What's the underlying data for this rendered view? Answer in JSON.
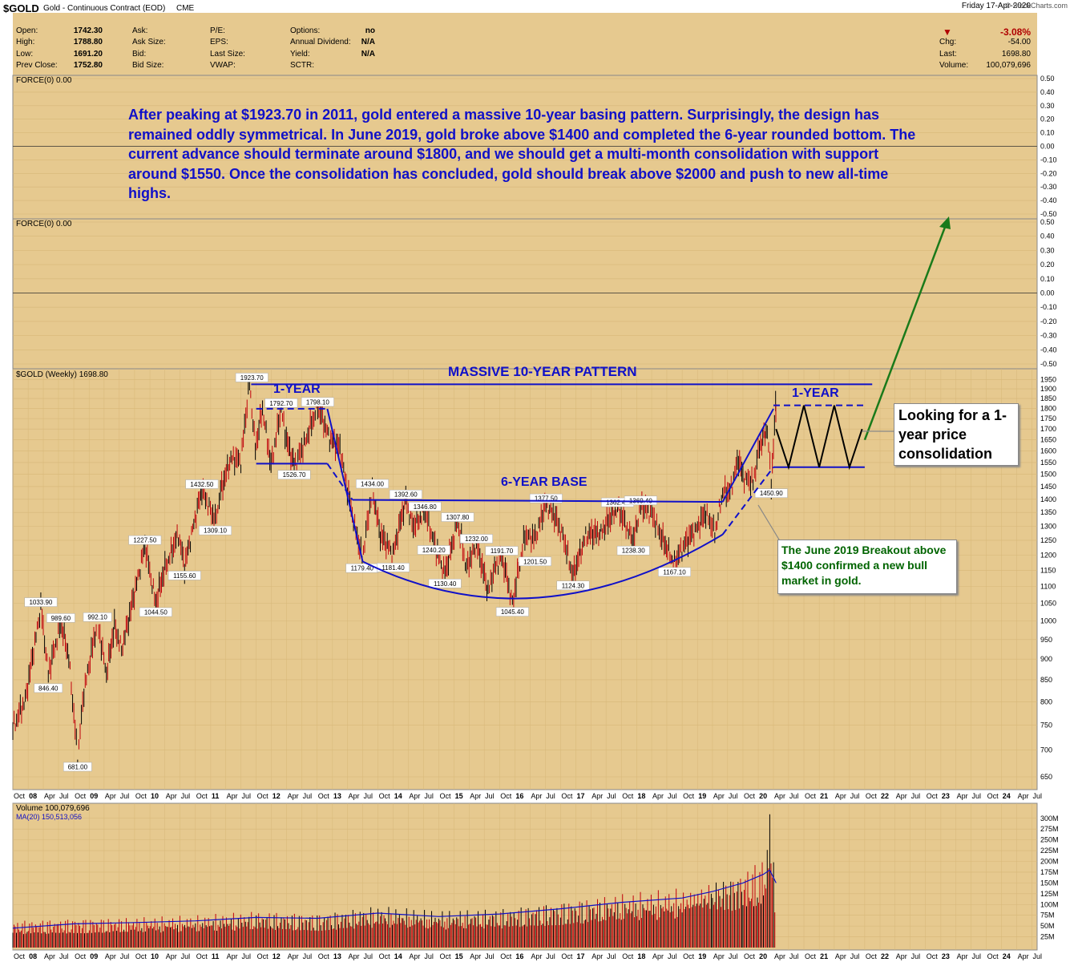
{
  "header": {
    "symbol": "$GOLD",
    "description": "Gold - Continuous Contract (EOD)",
    "exchange": "CME",
    "date": "Friday  17-Apr-2020",
    "watermark": "© StockCharts.com",
    "quotes": [
      {
        "label": "Open:",
        "value": "1742.30"
      },
      {
        "label": "High:",
        "value": "1788.80"
      },
      {
        "label": "Low:",
        "value": "1691.20"
      },
      {
        "label": "Prev Close:",
        "value": "1752.80"
      }
    ],
    "labels_col2": [
      "Ask:",
      "Ask Size:",
      "Bid:",
      "Bid Size:"
    ],
    "labels_col3": [
      "P/E:",
      "EPS:",
      "Last Size:",
      "VWAP:"
    ],
    "labels_col4": [
      {
        "label": "Options:",
        "value": "no"
      },
      {
        "label": "Annual Dividend:",
        "value": "N/A"
      },
      {
        "label": "Yield:",
        "value": "N/A"
      },
      {
        "label": "SCTR:",
        "value": ""
      }
    ],
    "change_pct": "-3.08%",
    "summary": [
      {
        "label": "Chg:",
        "value": "-54.00"
      },
      {
        "label": "Last:",
        "value": "1698.80"
      },
      {
        "label": "Volume:",
        "value": "100,079,696"
      }
    ],
    "colors": {
      "down": "#b00000",
      "up": "#000000",
      "panel": "#e6c98f",
      "blue_text": "#1010c8",
      "green_text": "#006400"
    }
  },
  "chart_data": [
    {
      "type": "line",
      "title": "FORCE(0) 0.00",
      "ylim": [
        -0.5,
        0.5
      ],
      "ytick_labels": [
        "0.50",
        "0.40",
        "0.30",
        "0.20",
        "0.10",
        "0.00",
        "-0.10",
        "-0.20",
        "-0.30",
        "-0.40",
        "-0.50"
      ],
      "series": [
        {
          "name": "FORCE(0)",
          "values": [
            0
          ]
        }
      ]
    },
    {
      "type": "line",
      "title": "FORCE(0) 0.00",
      "ylim": [
        -0.5,
        0.5
      ],
      "ytick_labels": [
        "0.50",
        "0.40",
        "0.30",
        "0.20",
        "0.10",
        "0.00",
        "-0.10",
        "-0.20",
        "-0.30",
        "-0.40",
        "-0.50"
      ],
      "series": [
        {
          "name": "FORCE(0)",
          "values": [
            0
          ]
        }
      ]
    },
    {
      "type": "line",
      "title": "$GOLD (Weekly) 1698.80",
      "y_scale": "log",
      "ylim": [
        640,
        1960
      ],
      "ytick_labels": [
        "1950",
        "1900",
        "1850",
        "1800",
        "1750",
        "1700",
        "1650",
        "1600",
        "1550",
        "1500",
        "1450",
        "1400",
        "1350",
        "1300",
        "1250",
        "1200",
        "1150",
        "1100",
        "1050",
        "1000",
        "950",
        "900",
        "850",
        "800",
        "750",
        "700",
        "650"
      ],
      "xtick_labels": [
        "Oct",
        "08",
        "Apr",
        "Jul",
        "Oct",
        "09",
        "Apr",
        "Jul",
        "Oct",
        "10",
        "Apr",
        "Jul",
        "Oct",
        "11",
        "Apr",
        "Jul",
        "Oct",
        "12",
        "Apr",
        "Jul",
        "Oct",
        "13",
        "Apr",
        "Jul",
        "Oct",
        "14",
        "Apr",
        "Jul",
        "Oct",
        "15",
        "Apr",
        "Jul",
        "Oct",
        "16",
        "Apr",
        "Jul",
        "Oct",
        "17",
        "Apr",
        "Jul",
        "Oct",
        "18",
        "Apr",
        "Jul",
        "Oct",
        "19",
        "Apr",
        "Jul",
        "Oct",
        "20",
        "Apr",
        "Jul",
        "Oct",
        "21",
        "Apr",
        "Jul",
        "Oct",
        "22",
        "Apr",
        "Jul",
        "Oct",
        "23",
        "Apr",
        "Jul",
        "Oct",
        "24",
        "Apr",
        "Jul"
      ],
      "x_start": "2007-10-01",
      "x_end": "2024-08-01",
      "series": [
        {
          "name": "$GOLD (Weekly) 1698.80",
          "x": [
            "2007-10-01",
            "2007-12-15",
            "2008-03-17",
            "2008-05-01",
            "2008-07-15",
            "2008-09-01",
            "2008-10-24",
            "2008-12-01",
            "2009-02-20",
            "2009-04-15",
            "2009-06-02",
            "2009-07-15",
            "2009-09-01",
            "2009-12-02",
            "2010-02-05",
            "2010-04-01",
            "2010-06-21",
            "2010-07-28",
            "2010-09-01",
            "2010-11-09",
            "2011-01-28",
            "2011-03-01",
            "2011-05-02",
            "2011-07-01",
            "2011-08-22",
            "2011-09-26",
            "2011-11-08",
            "2011-12-29",
            "2012-02-28",
            "2012-03-30",
            "2012-05-16",
            "2012-07-15",
            "2012-10-04",
            "2012-12-15",
            "2013-02-15",
            "2013-04-15",
            "2013-06-28",
            "2013-08-28",
            "2013-10-15",
            "2013-12-31",
            "2014-03-17",
            "2014-05-01",
            "2014-07-10",
            "2014-09-01",
            "2014-11-07",
            "2015-01-22",
            "2015-03-17",
            "2015-05-15",
            "2015-07-24",
            "2015-09-01",
            "2015-10-14",
            "2015-12-17",
            "2016-03-01",
            "2016-05-01",
            "2016-07-06",
            "2016-09-01",
            "2016-10-15",
            "2016-12-15",
            "2017-03-01",
            "2017-06-01",
            "2017-09-08",
            "2017-12-12",
            "2018-01-25",
            "2018-04-01",
            "2018-06-01",
            "2018-08-16",
            "2018-10-15",
            "2019-01-01",
            "2019-02-20",
            "2019-04-15",
            "2019-06-01",
            "2019-07-15",
            "2019-09-04",
            "2019-10-01",
            "2019-12-01",
            "2020-01-08",
            "2020-02-24",
            "2020-03-19",
            "2020-04-14",
            "2020-04-17"
          ],
          "values": [
            740,
            800,
            1033.9,
            860,
            989.6,
            900,
            681,
            820,
            992.1,
            860,
            980,
            920,
            1010,
            1227.5,
            1044.5,
            1150,
            1265,
            1155.6,
            1250,
            1432.5,
            1309.1,
            1420,
            1560,
            1550,
            1923.7,
            1600,
            1790,
            1526.7,
            1792.7,
            1640,
            1530,
            1620,
            1798.1,
            1650,
            1600,
            1380,
            1179.4,
            1430,
            1260,
            1200,
            1392.6,
            1290,
            1346.8,
            1240.2,
            1130.4,
            1307.8,
            1150,
            1232,
            1080,
            1150,
            1191.7,
            1045.4,
            1260,
            1250,
            1377.5,
            1320,
            1260,
            1124.3,
            1260,
            1270,
            1362.4,
            1240.2,
            1369.4,
            1340,
            1250,
            1167.1,
            1230,
            1290,
            1340,
            1270,
            1420,
            1420,
            1557,
            1480,
            1460,
            1610,
            1690,
            1450.9,
            1790,
            1698.8
          ]
        }
      ],
      "price_labels": [
        "1923.70",
        "1792.70",
        "1798.10",
        "1526.70",
        "1432.50",
        "1309.10",
        "1434.00",
        "1392.60",
        "1346.80",
        "1377.50",
        "1362.40",
        "1369.40",
        "1307.80",
        "1232.00",
        "1227.50",
        "1155.60",
        "1191.70",
        "1240.20",
        "1238.30",
        "1179.40",
        "1181.40",
        "1130.40",
        "1201.50",
        "1124.30",
        "1167.10",
        "1045.40",
        "1044.50",
        "1033.90",
        "989.60",
        "992.10",
        "846.40",
        "681.00",
        "1450.90"
      ],
      "annotations": {
        "big_text": "After peaking at $1923.70 in 2011, gold entered a massive 10-year basing pattern. Surprisingly, the design has remained oddly symmetrical. In June 2019, gold broke above $1400 and completed the 6-year rounded bottom. The current advance should terminate around $1800, and we should get a multi-month consolidation with support around $1550. Once the consolidation has concluded, gold should break above $2000 and push to new all-time highs.",
        "massive_label": "MASSIVE 10-YEAR PATTERN",
        "one_year_left": "1-YEAR",
        "one_year_right": "1-YEAR",
        "six_year_base": "6-YEAR BASE",
        "looking_for": "Looking for a 1-year price consolidation",
        "breakout_note": "The June 2019 Breakout above $1400 confirmed a new bull market in gold."
      }
    },
    {
      "type": "bar",
      "title": "Volume 100,079,696",
      "ma_label": "MA(20) 150,513,056",
      "ylim": [
        0,
        320
      ],
      "ytick_labels": [
        "300M",
        "275M",
        "250M",
        "225M",
        "200M",
        "175M",
        "150M",
        "125M",
        "100M",
        "75M",
        "50M",
        "25M"
      ],
      "xtick_labels": [
        "Oct",
        "08",
        "Apr",
        "Jul",
        "Oct",
        "09",
        "Apr",
        "Jul",
        "Oct",
        "10",
        "Apr",
        "Jul",
        "Oct",
        "11",
        "Apr",
        "Jul",
        "Oct",
        "12",
        "Apr",
        "Jul",
        "Oct",
        "13",
        "Apr",
        "Jul",
        "Oct",
        "14",
        "Apr",
        "Jul",
        "Oct",
        "15",
        "Apr",
        "Jul",
        "Oct",
        "16",
        "Apr",
        "Jul",
        "Oct",
        "17",
        "Apr",
        "Jul",
        "Oct",
        "18",
        "Apr",
        "Jul",
        "Oct",
        "19",
        "Apr",
        "Jul",
        "Oct",
        "20",
        "Apr",
        "Jul",
        "Oct",
        "21",
        "Apr",
        "Jul",
        "Oct",
        "22",
        "Apr",
        "Jul",
        "Oct",
        "23",
        "Apr",
        "Jul",
        "Oct",
        "24",
        "Apr",
        "Jul"
      ],
      "series": [
        {
          "name": "Volume 100,079,696",
          "x": [
            "2007-10-01",
            "2008-10-01",
            "2009-10-01",
            "2010-10-01",
            "2011-10-01",
            "2012-10-01",
            "2013-10-01",
            "2014-10-01",
            "2015-10-01",
            "2016-10-01",
            "2017-10-01",
            "2018-10-01",
            "2019-04-01",
            "2019-10-01",
            "2020-02-01",
            "2020-03-10",
            "2020-04-17"
          ],
          "values": [
            55,
            60,
            62,
            65,
            75,
            70,
            85,
            75,
            80,
            95,
            110,
            120,
            140,
            160,
            180,
            300,
            100
          ]
        },
        {
          "name": "MA(20) 150,513,056",
          "x": [
            "2007-10-01",
            "2008-10-01",
            "2009-10-01",
            "2010-10-01",
            "2011-10-01",
            "2012-10-01",
            "2013-10-01",
            "2014-10-01",
            "2015-10-01",
            "2016-10-01",
            "2017-10-01",
            "2018-10-01",
            "2019-04-01",
            "2019-10-01",
            "2020-02-01",
            "2020-03-10",
            "2020-04-17"
          ],
          "values": [
            45,
            55,
            58,
            62,
            70,
            68,
            80,
            72,
            78,
            90,
            105,
            115,
            130,
            150,
            170,
            180,
            150
          ]
        }
      ]
    }
  ]
}
